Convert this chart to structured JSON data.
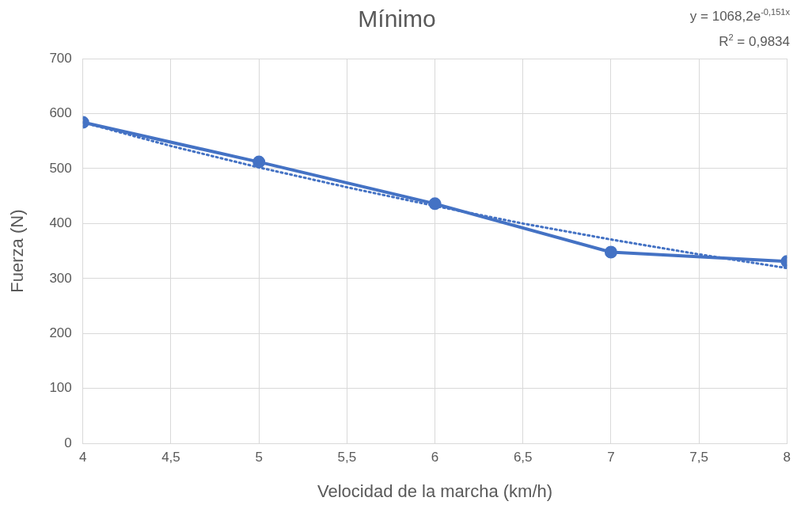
{
  "chart_data": {
    "type": "line",
    "title": "Mínimo",
    "xlabel": "Velocidad de la marcha (km/h)",
    "ylabel": "Fuerza (N)",
    "x": [
      4,
      5,
      6,
      7,
      8
    ],
    "series": [
      {
        "color": "#4472c4",
        "values": [
          584,
          512,
          436,
          348,
          331
        ],
        "marker": "circle",
        "line_style": "solid"
      },
      {
        "type": "line",
        "color": "#4472c4",
        "x": [
          4,
          4.5,
          5,
          5.5,
          6,
          6.5,
          7,
          7.5,
          8
        ],
        "values": [
          584,
          541,
          502,
          466,
          432,
          400,
          371,
          344,
          319
        ],
        "marker": "none",
        "line_style": "dotted"
      }
    ],
    "xlim": [
      4,
      8
    ],
    "xticks": [
      4,
      {
        "value": 4.5,
        "label": "4,5"
      },
      5,
      {
        "value": 5.5,
        "label": "5,5"
      },
      6,
      {
        "value": 6.5,
        "label": "6,5"
      },
      7,
      {
        "value": 7.5,
        "label": "7,5"
      },
      8
    ],
    "ylim": [
      0,
      700
    ],
    "yticks": [
      0,
      100,
      200,
      300,
      400,
      500,
      600,
      700
    ],
    "grid": true,
    "legend": false,
    "annotations": [
      "y = 1068,2e$^{-0,151x}$",
      "R$^{2}$ = 0,9834"
    ]
  }
}
